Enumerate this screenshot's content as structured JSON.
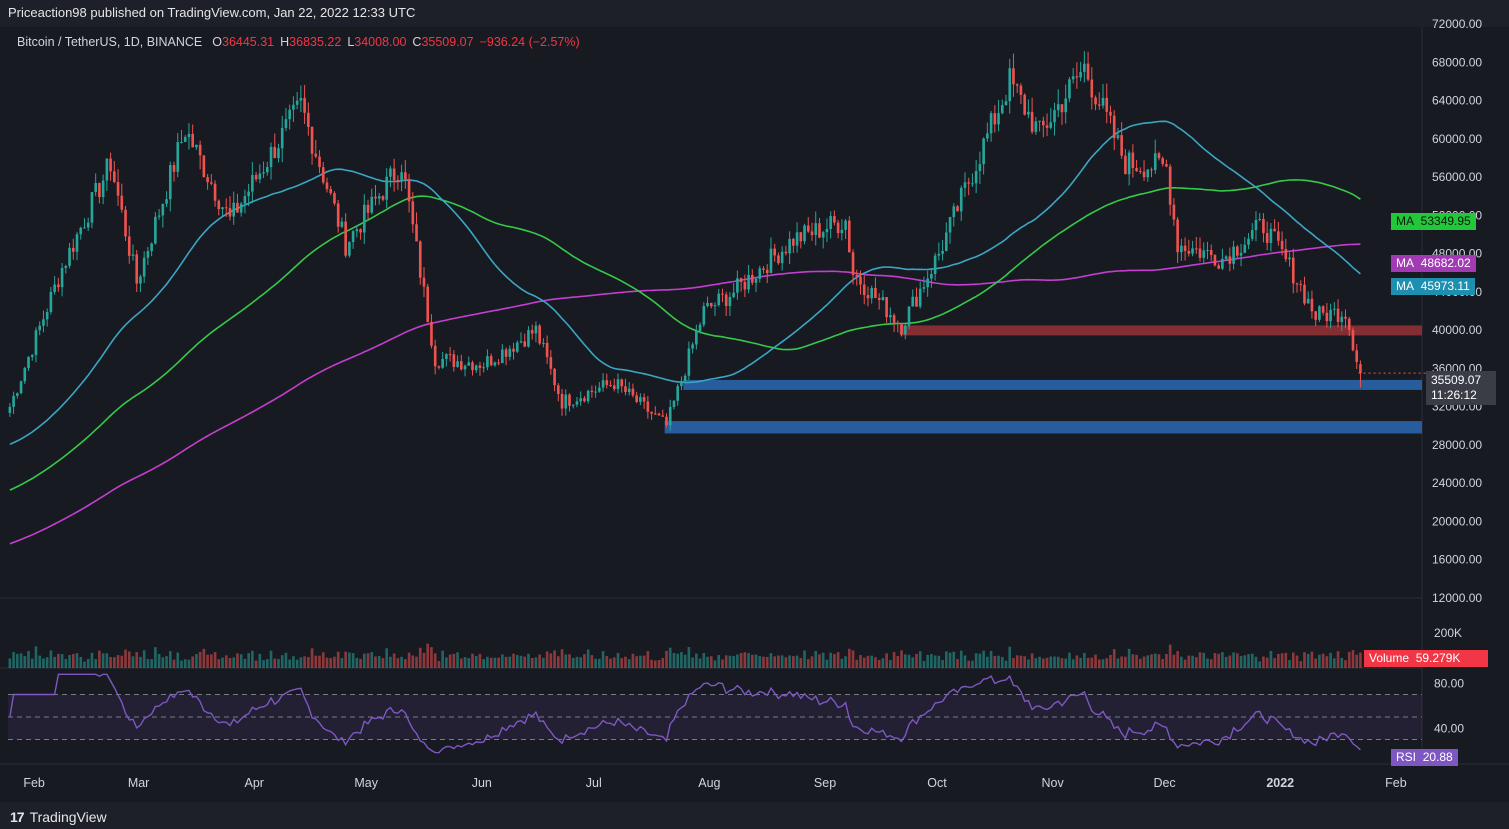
{
  "header": {
    "publisher_text": "Priceaction98 published on TradingView.com, Jan 22, 2022 12:33 UTC"
  },
  "legend": {
    "symbol": "Bitcoin / TetherUS, 1D, BINANCE",
    "open_label": "O",
    "open": "36445.31",
    "high_label": "H",
    "high": "36835.22",
    "low_label": "L",
    "low": "34008.00",
    "close_label": "C",
    "close": "35509.07",
    "change": "−936.24 (−2.57%)"
  },
  "price_axis": {
    "ticks": [
      "72000.00",
      "68000.00",
      "64000.00",
      "60000.00",
      "56000.00",
      "52000.00",
      "48000.00",
      "44000.00",
      "40000.00",
      "36000.00",
      "32000.00",
      "28000.00",
      "24000.00",
      "20000.00",
      "16000.00",
      "12000.00"
    ]
  },
  "volume_axis": {
    "ticks": [
      "200K"
    ]
  },
  "rsi_axis": {
    "ticks": [
      "80.00",
      "40.00"
    ]
  },
  "time_axis": {
    "labels": [
      "Feb",
      "Mar",
      "Apr",
      "May",
      "Jun",
      "Jul",
      "Aug",
      "Sep",
      "Oct",
      "Nov",
      "Dec",
      "2022",
      "Feb"
    ]
  },
  "tags": {
    "ma1_label": "MA",
    "ma1_value": "53349.95",
    "ma2_label": "MA",
    "ma2_value": "48682.02",
    "ma3_label": "MA",
    "ma3_value": "45973.11",
    "price_value": "35509.07",
    "countdown": "11:26:12",
    "volume_label": "Volume",
    "volume_value": "59.279K",
    "rsi_label": "RSI",
    "rsi_value": "20.88"
  },
  "footer": {
    "brand": "TradingView"
  },
  "colors": {
    "background": "#181a22",
    "up": "#26a69a",
    "down": "#ef5350",
    "ma_green": "#35c94a",
    "ma_purple": "#c43ed1",
    "ma_teal": "#3aa6c4",
    "rsi_line": "#7e57c2",
    "support_zone": "#2962a8",
    "resistance_zone": "#8e2f35"
  },
  "chart_data": {
    "type": "candlestick",
    "title": "Bitcoin / TetherUS, 1D, BINANCE",
    "price_ylim": [
      12000,
      74000
    ],
    "x_range": [
      "2021-01-25",
      "2022-02-08"
    ],
    "last_candle": {
      "date": "2022-01-22",
      "open": 36445.31,
      "high": 36835.22,
      "low": 34008.0,
      "close": 35509.07
    },
    "price_path": [
      {
        "date": "2021-01-25",
        "close": 32000
      },
      {
        "date": "2021-02-08",
        "close": 46500
      },
      {
        "date": "2021-02-21",
        "close": 57500
      },
      {
        "date": "2021-02-28",
        "close": 45000
      },
      {
        "date": "2021-03-13",
        "close": 61000
      },
      {
        "date": "2021-03-25",
        "close": 51500
      },
      {
        "date": "2021-04-13",
        "close": 63500
      },
      {
        "date": "2021-04-25",
        "close": 49000
      },
      {
        "date": "2021-05-10",
        "close": 57500
      },
      {
        "date": "2021-05-19",
        "close": 37000
      },
      {
        "date": "2021-06-01",
        "close": 36500
      },
      {
        "date": "2021-06-15",
        "close": 40000
      },
      {
        "date": "2021-06-22",
        "close": 32500
      },
      {
        "date": "2021-07-06",
        "close": 34500
      },
      {
        "date": "2021-07-20",
        "close": 30000
      },
      {
        "date": "2021-07-30",
        "close": 42000
      },
      {
        "date": "2021-08-07",
        "close": 44000
      },
      {
        "date": "2021-08-23",
        "close": 49500
      },
      {
        "date": "2021-09-06",
        "close": 51500
      },
      {
        "date": "2021-09-08",
        "close": 46000
      },
      {
        "date": "2021-09-21",
        "close": 40500
      },
      {
        "date": "2021-10-01",
        "close": 48000
      },
      {
        "date": "2021-10-20",
        "close": 66000
      },
      {
        "date": "2021-10-28",
        "close": 60500
      },
      {
        "date": "2021-11-09",
        "close": 67500
      },
      {
        "date": "2021-11-20",
        "close": 57500
      },
      {
        "date": "2021-12-01",
        "close": 57000
      },
      {
        "date": "2021-12-04",
        "close": 49000
      },
      {
        "date": "2021-12-16",
        "close": 47500
      },
      {
        "date": "2021-12-27",
        "close": 51000
      },
      {
        "date": "2022-01-04",
        "close": 46000
      },
      {
        "date": "2022-01-10",
        "close": 41500
      },
      {
        "date": "2022-01-18",
        "close": 42000
      },
      {
        "date": "2022-01-22",
        "close": 35509.07
      }
    ],
    "moving_averages": [
      {
        "name": "MA",
        "color": "#35c94a",
        "last": 53349.95
      },
      {
        "name": "MA",
        "color": "#c43ed1",
        "last": 48682.02
      },
      {
        "name": "MA",
        "color": "#3aa6c4",
        "last": 45973.11
      }
    ],
    "zones": [
      {
        "type": "resistance",
        "from": 39500,
        "to": 40500,
        "start": "2021-09-21"
      },
      {
        "type": "support",
        "from": 33800,
        "to": 34800,
        "start": "2021-07-25"
      },
      {
        "type": "support",
        "from": 29200,
        "to": 30500,
        "start": "2021-07-20"
      }
    ],
    "volume": {
      "last": "59.279K",
      "ylim_label": "200K"
    },
    "rsi": {
      "last": 20.88,
      "bands": [
        70,
        50,
        30
      ],
      "ticks": [
        80,
        40
      ]
    }
  }
}
